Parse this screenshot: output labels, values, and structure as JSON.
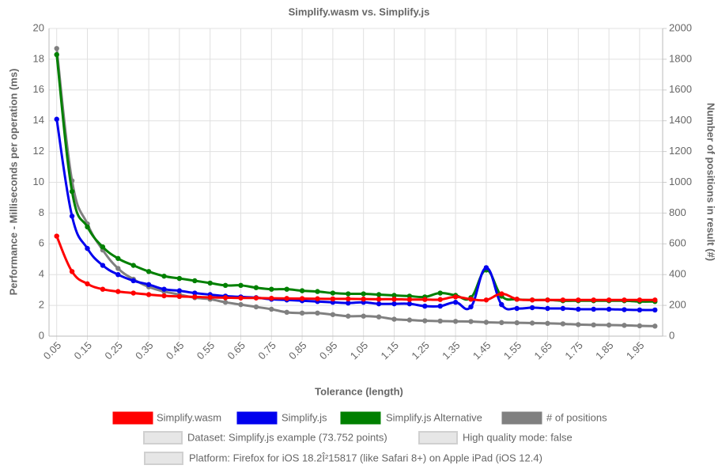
{
  "chart_data": {
    "type": "line",
    "title": "Simplify.wasm vs. Simplify.js",
    "x_label": "Tolerance (length)",
    "y_label": "Performance - Milliseconds per operation (ms)",
    "y2_label": "Number of positions in result (#)",
    "categories": [
      "0.05",
      null,
      "0.15",
      null,
      "0.25",
      null,
      "0.35",
      null,
      "0.45",
      null,
      "0.55",
      null,
      "0.65",
      null,
      "0.75",
      null,
      "0.85",
      null,
      "0.95",
      null,
      "1.05",
      null,
      "1.15",
      null,
      "1.25",
      null,
      "1.35",
      null,
      "1.45",
      null,
      "1.55",
      null,
      "1.65",
      null,
      "1.75",
      null,
      "1.85",
      null,
      "1.95",
      null
    ],
    "ylim": [
      0,
      20
    ],
    "yticks": [
      0,
      2,
      4,
      6,
      8,
      10,
      12,
      14,
      16,
      18,
      20
    ],
    "y2lim": [
      0,
      2000
    ],
    "y2ticks": [
      0,
      200,
      400,
      600,
      800,
      1000,
      1200,
      1400,
      1600,
      1800,
      2000
    ],
    "grid": true,
    "legend": "bottom",
    "series": [
      {
        "name": "Simplify.wasm",
        "color": "#ff0000",
        "values": [
          6.5,
          4.2,
          3.4,
          3.05,
          2.9,
          2.8,
          2.7,
          2.62,
          2.58,
          2.55,
          2.52,
          2.5,
          2.48,
          2.48,
          2.46,
          2.45,
          2.44,
          2.43,
          2.42,
          2.42,
          2.41,
          2.4,
          2.4,
          2.38,
          2.38,
          2.38,
          2.55,
          2.4,
          2.35,
          2.75,
          2.4,
          2.35,
          2.35,
          2.35,
          2.35,
          2.35,
          2.35,
          2.35,
          2.35,
          2.35
        ]
      },
      {
        "name": "Simplify.js",
        "color": "#0000ee",
        "values": [
          14.1,
          7.8,
          5.7,
          4.6,
          4.0,
          3.6,
          3.35,
          3.05,
          2.95,
          2.8,
          2.7,
          2.6,
          2.55,
          2.5,
          2.4,
          2.35,
          2.3,
          2.25,
          2.2,
          2.15,
          2.2,
          2.1,
          2.1,
          2.1,
          1.95,
          1.95,
          2.2,
          1.9,
          4.45,
          2.05,
          1.8,
          1.85,
          1.8,
          1.8,
          1.75,
          1.75,
          1.75,
          1.72,
          1.7,
          1.7
        ]
      },
      {
        "name": "Simplify.js Alternative",
        "color": "#008000",
        "values": [
          18.3,
          9.4,
          7.1,
          5.8,
          5.05,
          4.6,
          4.2,
          3.9,
          3.75,
          3.6,
          3.45,
          3.3,
          3.3,
          3.15,
          3.05,
          3.05,
          2.95,
          2.9,
          2.8,
          2.75,
          2.75,
          2.7,
          2.65,
          2.6,
          2.55,
          2.8,
          2.65,
          2.5,
          4.3,
          2.6,
          2.4,
          2.35,
          2.35,
          2.3,
          2.3,
          2.3,
          2.3,
          2.3,
          2.25,
          2.25
        ]
      },
      {
        "name": "# of positions",
        "color": "#808080",
        "axis": "y2",
        "values": [
          1870,
          1010,
          730,
          560,
          440,
          370,
          320,
          290,
          270,
          250,
          240,
          220,
          205,
          190,
          175,
          155,
          150,
          150,
          140,
          130,
          130,
          125,
          110,
          105,
          100,
          98,
          96,
          95,
          90,
          88,
          87,
          85,
          83,
          80,
          75,
          73,
          72,
          70,
          67,
          65
        ]
      }
    ],
    "legend_notes": [
      "Dataset: Simplify.js example (73.752 points)",
      "High quality mode: false",
      "Platform: Firefox for iOS 18.2Î²15817 (like Safari 8+) on Apple iPad (iOS 12.4)"
    ]
  }
}
